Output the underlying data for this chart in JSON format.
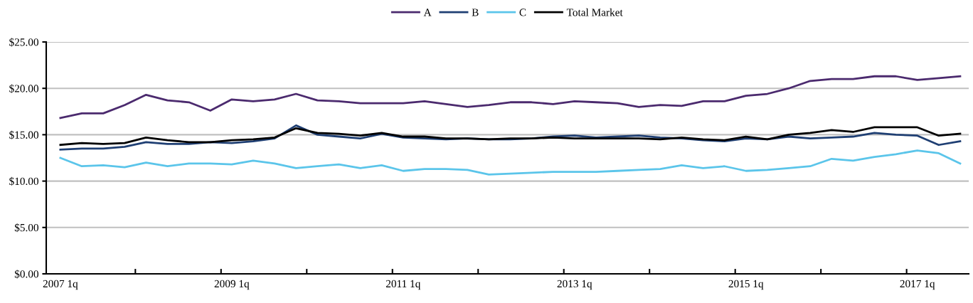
{
  "chart_data": {
    "type": "line",
    "categories": [
      "2007 1q",
      null,
      null,
      null,
      null,
      null,
      null,
      null,
      "2009 1q",
      null,
      null,
      null,
      null,
      null,
      null,
      null,
      "2011 1q",
      null,
      null,
      null,
      null,
      null,
      null,
      null,
      "2013 1q",
      null,
      null,
      null,
      null,
      null,
      null,
      null,
      "2015 1q",
      null,
      null,
      null,
      null,
      null,
      null,
      null,
      "2017 1q",
      null,
      null
    ],
    "series": [
      {
        "name": "A",
        "color": "#4b2a6e",
        "values": [
          16.8,
          17.3,
          17.3,
          18.2,
          19.3,
          18.7,
          18.5,
          17.6,
          18.8,
          18.6,
          18.8,
          19.4,
          18.7,
          18.6,
          18.4,
          18.4,
          18.4,
          18.6,
          18.3,
          18.0,
          18.2,
          18.5,
          18.5,
          18.3,
          18.6,
          18.5,
          18.4,
          18.0,
          18.2,
          18.1,
          18.6,
          18.6,
          19.2,
          19.4,
          20.0,
          20.8,
          21.0,
          21.0,
          21.3,
          21.3,
          20.9,
          21.1,
          21.3
        ]
      },
      {
        "name": "B",
        "color": "#1f3f73",
        "values": [
          13.4,
          13.5,
          13.5,
          13.7,
          14.2,
          14.0,
          14.0,
          14.2,
          14.1,
          14.3,
          14.6,
          16.0,
          15.0,
          14.8,
          14.6,
          15.1,
          14.7,
          14.6,
          14.5,
          14.6,
          14.5,
          14.5,
          14.6,
          14.8,
          14.9,
          14.7,
          14.8,
          14.9,
          14.7,
          14.6,
          14.4,
          14.3,
          14.6,
          14.5,
          14.8,
          14.6,
          14.7,
          14.8,
          15.2,
          15.0,
          14.9,
          13.9,
          14.3
        ]
      },
      {
        "name": "C",
        "color": "#5bc5ea",
        "values": [
          12.5,
          11.6,
          11.7,
          11.5,
          12.0,
          11.6,
          11.9,
          11.9,
          11.8,
          12.2,
          11.9,
          11.4,
          11.6,
          11.8,
          11.4,
          11.7,
          11.1,
          11.3,
          11.3,
          11.2,
          10.7,
          10.8,
          10.9,
          11.0,
          11.0,
          11.0,
          11.1,
          11.2,
          11.3,
          11.7,
          11.4,
          11.6,
          11.1,
          11.2,
          11.4,
          11.6,
          12.4,
          12.2,
          12.6,
          12.9,
          13.3,
          13.0,
          11.9
        ]
      },
      {
        "name": "Total Market",
        "color": "#000000",
        "values": [
          13.9,
          14.1,
          14.0,
          14.1,
          14.7,
          14.4,
          14.2,
          14.2,
          14.4,
          14.5,
          14.7,
          15.7,
          15.2,
          15.1,
          14.9,
          15.2,
          14.8,
          14.8,
          14.6,
          14.6,
          14.5,
          14.6,
          14.6,
          14.7,
          14.6,
          14.6,
          14.6,
          14.6,
          14.5,
          14.7,
          14.5,
          14.4,
          14.8,
          14.5,
          15.0,
          15.2,
          15.5,
          15.3,
          15.8,
          15.8,
          15.8,
          14.9,
          15.1
        ]
      }
    ],
    "ylim": [
      0,
      25
    ],
    "yticks": [
      {
        "value": 0,
        "label": "$0.00"
      },
      {
        "value": 5,
        "label": "$5.00"
      },
      {
        "value": 10,
        "label": "$10.00"
      },
      {
        "value": 15,
        "label": "$15.00"
      },
      {
        "value": 20,
        "label": "$20.00"
      },
      {
        "value": 25,
        "label": "$25.00"
      }
    ],
    "grid": "y",
    "legend": "top",
    "marker": "none",
    "line_style": "solid"
  }
}
